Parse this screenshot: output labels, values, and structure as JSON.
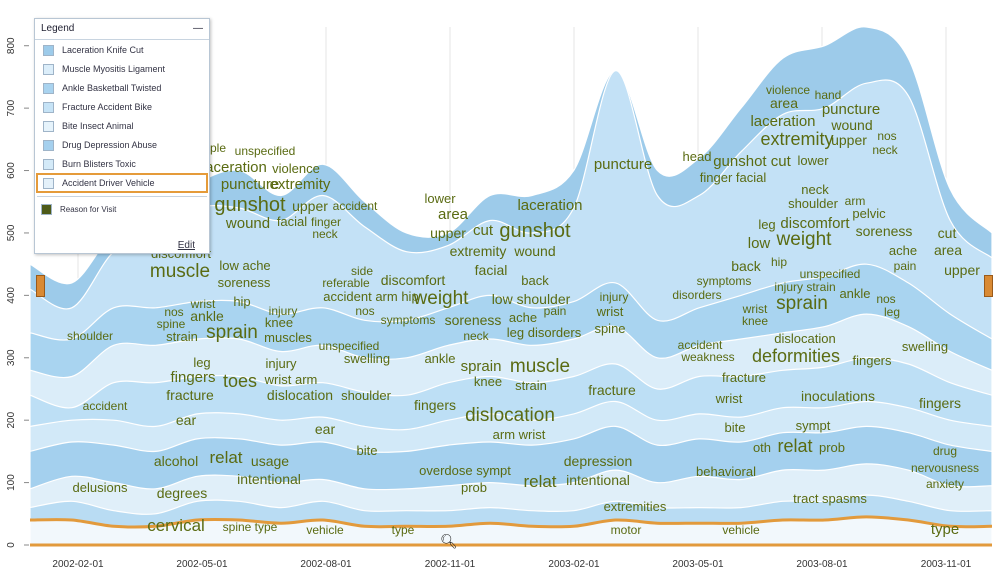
{
  "legend": {
    "title": "Legend",
    "collapse_glyph": "—",
    "items": [
      {
        "label": "Laceration Knife Cut",
        "color": "#9dcbea"
      },
      {
        "label": "Muscle Myositis Ligament",
        "color": "#dceefa"
      },
      {
        "label": "Ankle Basketball Twisted",
        "color": "#a9d3ef"
      },
      {
        "label": "Fracture Accident Bike",
        "color": "#c6e3f6"
      },
      {
        "label": "Bite Insect Animal",
        "color": "#e6f3fb"
      },
      {
        "label": "Drug Depression Abuse",
        "color": "#a5d0ee"
      },
      {
        "label": "Burn Blisters Toxic",
        "color": "#d4eaf8"
      },
      {
        "label": "Accident Driver Vehicle",
        "color": "#e4f1fa"
      }
    ],
    "reason_label": "Reason for Visit",
    "reason_color": "#4d5a18",
    "edit_label": "Edit"
  },
  "colors": {
    "word": "#5a6b12",
    "orange": "#e29a3c"
  },
  "chart_data": {
    "type": "area",
    "stacked": true,
    "x_ticks": [
      "2002-02-01",
      "2002-05-01",
      "2002-08-01",
      "2002-11-01",
      "2003-02-01",
      "2003-05-01",
      "2003-08-01",
      "2003-11-01"
    ],
    "y_ticks": [
      0,
      100,
      200,
      300,
      400,
      500,
      600,
      700,
      800
    ],
    "ylim": [
      0,
      830
    ],
    "x": [
      "2002-01",
      "2002-02",
      "2002-03",
      "2002-04",
      "2002-05",
      "2002-06",
      "2002-07",
      "2002-08",
      "2002-09",
      "2002-10",
      "2002-11",
      "2002-12",
      "2003-01",
      "2003-02",
      "2003-03",
      "2003-04",
      "2003-05",
      "2003-06",
      "2003-07",
      "2003-08",
      "2003-09",
      "2003-10",
      "2003-11",
      "2003-12"
    ],
    "boundaries": [
      [
        40,
        40,
        30,
        30,
        40,
        40,
        35,
        40,
        30,
        30,
        30,
        35,
        30,
        30,
        40,
        35,
        35,
        35,
        40,
        40,
        45,
        40,
        30,
        30
      ],
      [
        60,
        70,
        55,
        50,
        70,
        70,
        60,
        70,
        55,
        55,
        55,
        60,
        55,
        55,
        70,
        60,
        60,
        60,
        70,
        70,
        80,
        70,
        55,
        55
      ],
      [
        90,
        110,
        100,
        90,
        110,
        110,
        100,
        105,
        90,
        90,
        95,
        100,
        95,
        100,
        120,
        100,
        110,
        105,
        120,
        120,
        130,
        120,
        95,
        95
      ],
      [
        150,
        165,
        160,
        150,
        170,
        170,
        160,
        165,
        150,
        150,
        160,
        165,
        160,
        170,
        190,
        160,
        170,
        165,
        180,
        180,
        190,
        180,
        160,
        150
      ],
      [
        190,
        200,
        200,
        190,
        210,
        210,
        200,
        205,
        190,
        185,
        200,
        210,
        200,
        210,
        230,
        200,
        210,
        205,
        220,
        220,
        230,
        220,
        200,
        190
      ],
      [
        240,
        220,
        260,
        260,
        270,
        270,
        255,
        260,
        245,
        240,
        260,
        270,
        260,
        270,
        290,
        250,
        270,
        270,
        280,
        285,
        300,
        290,
        260,
        240
      ],
      [
        280,
        270,
        320,
        320,
        330,
        330,
        310,
        320,
        300,
        300,
        320,
        330,
        320,
        330,
        350,
        300,
        320,
        330,
        340,
        350,
        370,
        350,
        310,
        280
      ],
      [
        340,
        330,
        380,
        380,
        390,
        390,
        370,
        380,
        360,
        360,
        380,
        400,
        380,
        390,
        420,
        360,
        380,
        400,
        420,
        430,
        450,
        420,
        370,
        330
      ],
      [
        410,
        380,
        470,
        500,
        540,
        540,
        520,
        560,
        510,
        470,
        480,
        520,
        500,
        540,
        760,
        560,
        560,
        630,
        690,
        700,
        740,
        720,
        520,
        460
      ],
      [
        450,
        420,
        500,
        530,
        580,
        600,
        560,
        610,
        550,
        500,
        500,
        560,
        560,
        600,
        760,
        600,
        620,
        700,
        780,
        800,
        830,
        780,
        570,
        500
      ]
    ],
    "words": [
      [
        "shoulder",
        20,
        90,
        340,
        12
      ],
      [
        "accident",
        16,
        105,
        410,
        12
      ],
      [
        "delusions",
        18,
        100,
        492,
        13
      ],
      [
        "degrees",
        22,
        182,
        498,
        14
      ],
      [
        "cervical",
        26,
        176,
        531,
        17
      ],
      [
        "spine type",
        14,
        250,
        531,
        12
      ],
      [
        "vehicle",
        16,
        325,
        534,
        12
      ],
      [
        "type",
        18,
        403,
        534,
        12
      ],
      [
        "motor",
        18,
        626,
        534,
        12
      ],
      [
        "vehicle",
        16,
        741,
        534,
        12
      ],
      [
        "type",
        18,
        945,
        534,
        15
      ],
      [
        "extremities",
        22,
        635,
        511,
        13
      ],
      [
        "tract spasms",
        20,
        830,
        503,
        13
      ],
      [
        "nervousness",
        14,
        945,
        472,
        12
      ],
      [
        "anxiety",
        14,
        945,
        488,
        12
      ],
      [
        "drug",
        16,
        945,
        455,
        12
      ],
      [
        "behavioral",
        16,
        726,
        476,
        13
      ],
      [
        "depression",
        20,
        598,
        466,
        14
      ],
      [
        "intentional",
        20,
        598,
        485,
        14
      ],
      [
        "relat",
        22,
        540,
        487,
        17
      ],
      [
        "overdose sympt",
        14,
        465,
        475,
        13
      ],
      [
        "prob",
        16,
        474,
        492,
        13
      ],
      [
        "alcohol",
        14,
        176,
        466,
        14
      ],
      [
        "relat",
        18,
        226,
        463,
        17
      ],
      [
        "usage",
        12,
        270,
        466,
        14
      ],
      [
        "intentional",
        20,
        269,
        484,
        14
      ],
      [
        "ear",
        16,
        186,
        425,
        14
      ],
      [
        "ear",
        16,
        325,
        434,
        14
      ],
      [
        "bite",
        14,
        367,
        455,
        13
      ],
      [
        "dislocation",
        20,
        510,
        421,
        19
      ],
      [
        "arm wrist",
        14,
        519,
        439,
        13
      ],
      [
        "fingers",
        14,
        435,
        410,
        14
      ],
      [
        "fracture",
        20,
        612,
        395,
        14
      ],
      [
        "inoculations",
        16,
        838,
        401,
        14
      ],
      [
        "fingers",
        18,
        940,
        408,
        14
      ],
      [
        "bite",
        12,
        735,
        432,
        13
      ],
      [
        "sympt",
        14,
        813,
        430,
        13
      ],
      [
        "relat",
        18,
        795,
        452,
        18
      ],
      [
        "oth",
        10,
        762,
        452,
        13
      ],
      [
        "prob",
        12,
        832,
        452,
        13
      ],
      [
        "wrist",
        12,
        729,
        403,
        13
      ],
      [
        "fracture",
        18,
        744,
        382,
        13
      ],
      [
        "deformities",
        26,
        796,
        362,
        18
      ],
      [
        "fingers",
        14,
        872,
        365,
        13
      ],
      [
        "dislocation",
        16,
        805,
        343,
        13
      ],
      [
        "swelling",
        14,
        925,
        351,
        13
      ],
      [
        "accident",
        16,
        700,
        349,
        12
      ],
      [
        "weakness",
        16,
        708,
        361,
        12
      ],
      [
        "muscle",
        22,
        540,
        372,
        19
      ],
      [
        "sprain",
        18,
        481,
        371,
        15
      ],
      [
        "knee",
        12,
        488,
        386,
        13
      ],
      [
        "strain",
        12,
        531,
        390,
        13
      ],
      [
        "ankle",
        14,
        440,
        363,
        13
      ],
      [
        "swelling",
        14,
        367,
        363,
        13
      ],
      [
        "unspecified",
        14,
        349,
        350,
        12
      ],
      [
        "injury",
        12,
        281,
        368,
        13
      ],
      [
        "wrist arm",
        14,
        291,
        384,
        13
      ],
      [
        "dislocation",
        18,
        300,
        400,
        14
      ],
      [
        "shoulder",
        14,
        366,
        400,
        13
      ],
      [
        "leg",
        10,
        202,
        367,
        13
      ],
      [
        "fingers",
        16,
        193,
        382,
        15
      ],
      [
        "fracture",
        16,
        190,
        400,
        14
      ],
      [
        "toes",
        16,
        240,
        387,
        18
      ],
      [
        "muscles",
        14,
        288,
        342,
        13
      ],
      [
        "sprain",
        22,
        232,
        338,
        19
      ],
      [
        "strain",
        16,
        182,
        341,
        13
      ],
      [
        "nos",
        12,
        174,
        316,
        12
      ],
      [
        "spine",
        12,
        171,
        328,
        12
      ],
      [
        "ankle",
        16,
        207,
        321,
        14
      ],
      [
        "wrist",
        12,
        203,
        308,
        12
      ],
      [
        "hip",
        12,
        242,
        306,
        13
      ],
      [
        "injury",
        12,
        283,
        315,
        12
      ],
      [
        "knee",
        14,
        279,
        327,
        13
      ],
      [
        "muscle",
        26,
        180,
        277,
        19
      ],
      [
        "low ache",
        16,
        245,
        270,
        13
      ],
      [
        "soreness",
        16,
        244,
        287,
        13
      ],
      [
        "discomfort",
        16,
        181,
        258,
        13
      ],
      [
        "side",
        12,
        362,
        275,
        12
      ],
      [
        "referable",
        14,
        346,
        287,
        12
      ],
      [
        "discomfort",
        20,
        413,
        285,
        14
      ],
      [
        "accident arm hip",
        14,
        371,
        301,
        13
      ],
      [
        "weight",
        22,
        441,
        304,
        19
      ],
      [
        "nos",
        12,
        365,
        315,
        12
      ],
      [
        "symptoms",
        16,
        408,
        324,
        12
      ],
      [
        "soreness",
        18,
        473,
        325,
        14
      ],
      [
        "neck",
        16,
        476,
        340,
        12
      ],
      [
        "back",
        16,
        535,
        285,
        13
      ],
      [
        "low shoulder",
        16,
        531,
        304,
        14
      ],
      [
        "ache",
        14,
        523,
        322,
        13
      ],
      [
        "pain",
        12,
        555,
        315,
        12
      ],
      [
        "leg disorders",
        16,
        544,
        337,
        13
      ],
      [
        "injury",
        12,
        614,
        301,
        12
      ],
      [
        "wrist",
        14,
        610,
        316,
        13
      ],
      [
        "spine",
        14,
        610,
        333,
        13
      ],
      [
        "symptoms",
        16,
        724,
        285,
        12
      ],
      [
        "disorders",
        16,
        697,
        299,
        12
      ],
      [
        "back",
        16,
        746,
        271,
        14
      ],
      [
        "hip",
        12,
        779,
        266,
        12
      ],
      [
        "injury strain",
        16,
        805,
        291,
        12
      ],
      [
        "unspecified",
        16,
        830,
        278,
        12
      ],
      [
        "wrist",
        12,
        755,
        313,
        12
      ],
      [
        "knee",
        12,
        755,
        325,
        12
      ],
      [
        "sprain",
        22,
        802,
        309,
        19
      ],
      [
        "ankle",
        14,
        855,
        298,
        13
      ],
      [
        "nos",
        12,
        886,
        303,
        12
      ],
      [
        "leg",
        12,
        892,
        316,
        12
      ],
      [
        "cut",
        14,
        947,
        238,
        14
      ],
      [
        "area",
        16,
        948,
        255,
        14
      ],
      [
        "upper",
        20,
        962,
        275,
        14
      ],
      [
        "ache",
        14,
        903,
        255,
        13
      ],
      [
        "pain",
        12,
        905,
        270,
        12
      ],
      [
        "low",
        14,
        759,
        248,
        15
      ],
      [
        "weight",
        26,
        804,
        245,
        19
      ],
      [
        "leg",
        10,
        767,
        229,
        13
      ],
      [
        "discomfort",
        18,
        815,
        228,
        15
      ],
      [
        "soreness",
        20,
        884,
        236,
        14
      ],
      [
        "pelvic",
        14,
        869,
        218,
        13
      ],
      [
        "shoulder",
        18,
        813,
        208,
        13
      ],
      [
        "arm",
        12,
        855,
        205,
        12
      ],
      [
        "neck",
        14,
        815,
        194,
        13
      ],
      [
        "lower",
        18,
        440,
        203,
        13
      ],
      [
        "area",
        20,
        453,
        219,
        15
      ],
      [
        "upper",
        20,
        448,
        238,
        14
      ],
      [
        "cut",
        16,
        483,
        235,
        15
      ],
      [
        "gunshot",
        28,
        535,
        237,
        20
      ],
      [
        "extremity",
        22,
        478,
        256,
        14
      ],
      [
        "wound",
        18,
        535,
        256,
        14
      ],
      [
        "facial",
        20,
        491,
        275,
        14
      ],
      [
        "laceration",
        20,
        550,
        210,
        15
      ],
      [
        "neck",
        16,
        325,
        238,
        12
      ],
      [
        "upper",
        16,
        310,
        211,
        14
      ],
      [
        "accident",
        16,
        355,
        210,
        12
      ],
      [
        "facial",
        14,
        292,
        226,
        13
      ],
      [
        "finger",
        12,
        326,
        226,
        12
      ],
      [
        "wound",
        16,
        248,
        228,
        15
      ],
      [
        "gunshot",
        26,
        250,
        211,
        20
      ],
      [
        "puncture",
        22,
        250,
        189,
        15
      ],
      [
        "extremity",
        18,
        300,
        189,
        15
      ],
      [
        "aceration",
        20,
        236,
        172,
        15
      ],
      [
        "violence",
        14,
        296,
        173,
        13
      ],
      [
        "tiple",
        10,
        215,
        152,
        12
      ],
      [
        "unspecified",
        14,
        265,
        155,
        12
      ],
      [
        "puncture",
        24,
        623,
        169,
        15
      ],
      [
        "head",
        12,
        697,
        161,
        13
      ],
      [
        "gunshot cut",
        22,
        752,
        166,
        15
      ],
      [
        "lower",
        14,
        813,
        165,
        13
      ],
      [
        "finger facial",
        16,
        733,
        182,
        13
      ],
      [
        "extremity",
        26,
        797,
        145,
        18
      ],
      [
        "upper",
        18,
        849,
        145,
        14
      ],
      [
        "nos",
        12,
        887,
        140,
        12
      ],
      [
        "neck",
        14,
        885,
        154,
        12
      ],
      [
        "laceration",
        20,
        783,
        126,
        15
      ],
      [
        "wound",
        18,
        852,
        130,
        14
      ],
      [
        "area",
        18,
        784,
        108,
        14
      ],
      [
        "puncture",
        22,
        851,
        114,
        15
      ],
      [
        "violence",
        14,
        788,
        94,
        12
      ],
      [
        "hand",
        12,
        828,
        99,
        12
      ]
    ]
  }
}
